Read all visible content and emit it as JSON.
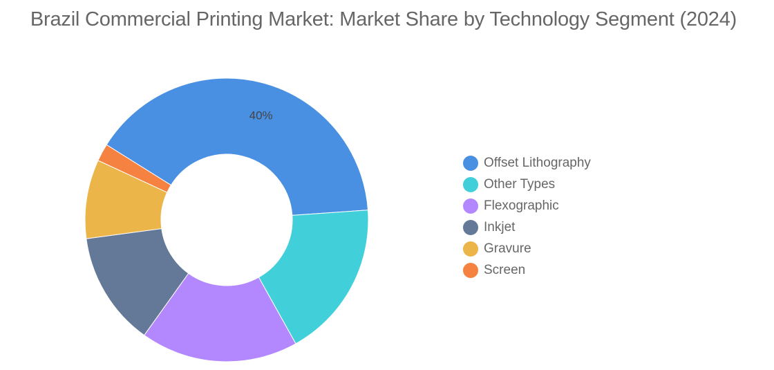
{
  "chart_data": {
    "type": "pie",
    "variant": "donut",
    "title": "Brazil Commercial Printing Market: Market Share by Technology Segment (2024)",
    "unit": "%",
    "legend_position": "right",
    "series": [
      {
        "name": "Offset Lithography",
        "value": 40,
        "color": "#4a90e2",
        "label": "40%"
      },
      {
        "name": "Other Types",
        "value": 18,
        "color": "#41cfd9",
        "label": ""
      },
      {
        "name": "Flexographic",
        "value": 18,
        "color": "#b388ff",
        "label": ""
      },
      {
        "name": "Inkjet",
        "value": 13,
        "color": "#647898",
        "label": ""
      },
      {
        "name": "Gravure",
        "value": 9,
        "color": "#ebb54a",
        "label": ""
      },
      {
        "name": "Screen",
        "value": 2,
        "color": "#f58241",
        "label": ""
      }
    ]
  }
}
